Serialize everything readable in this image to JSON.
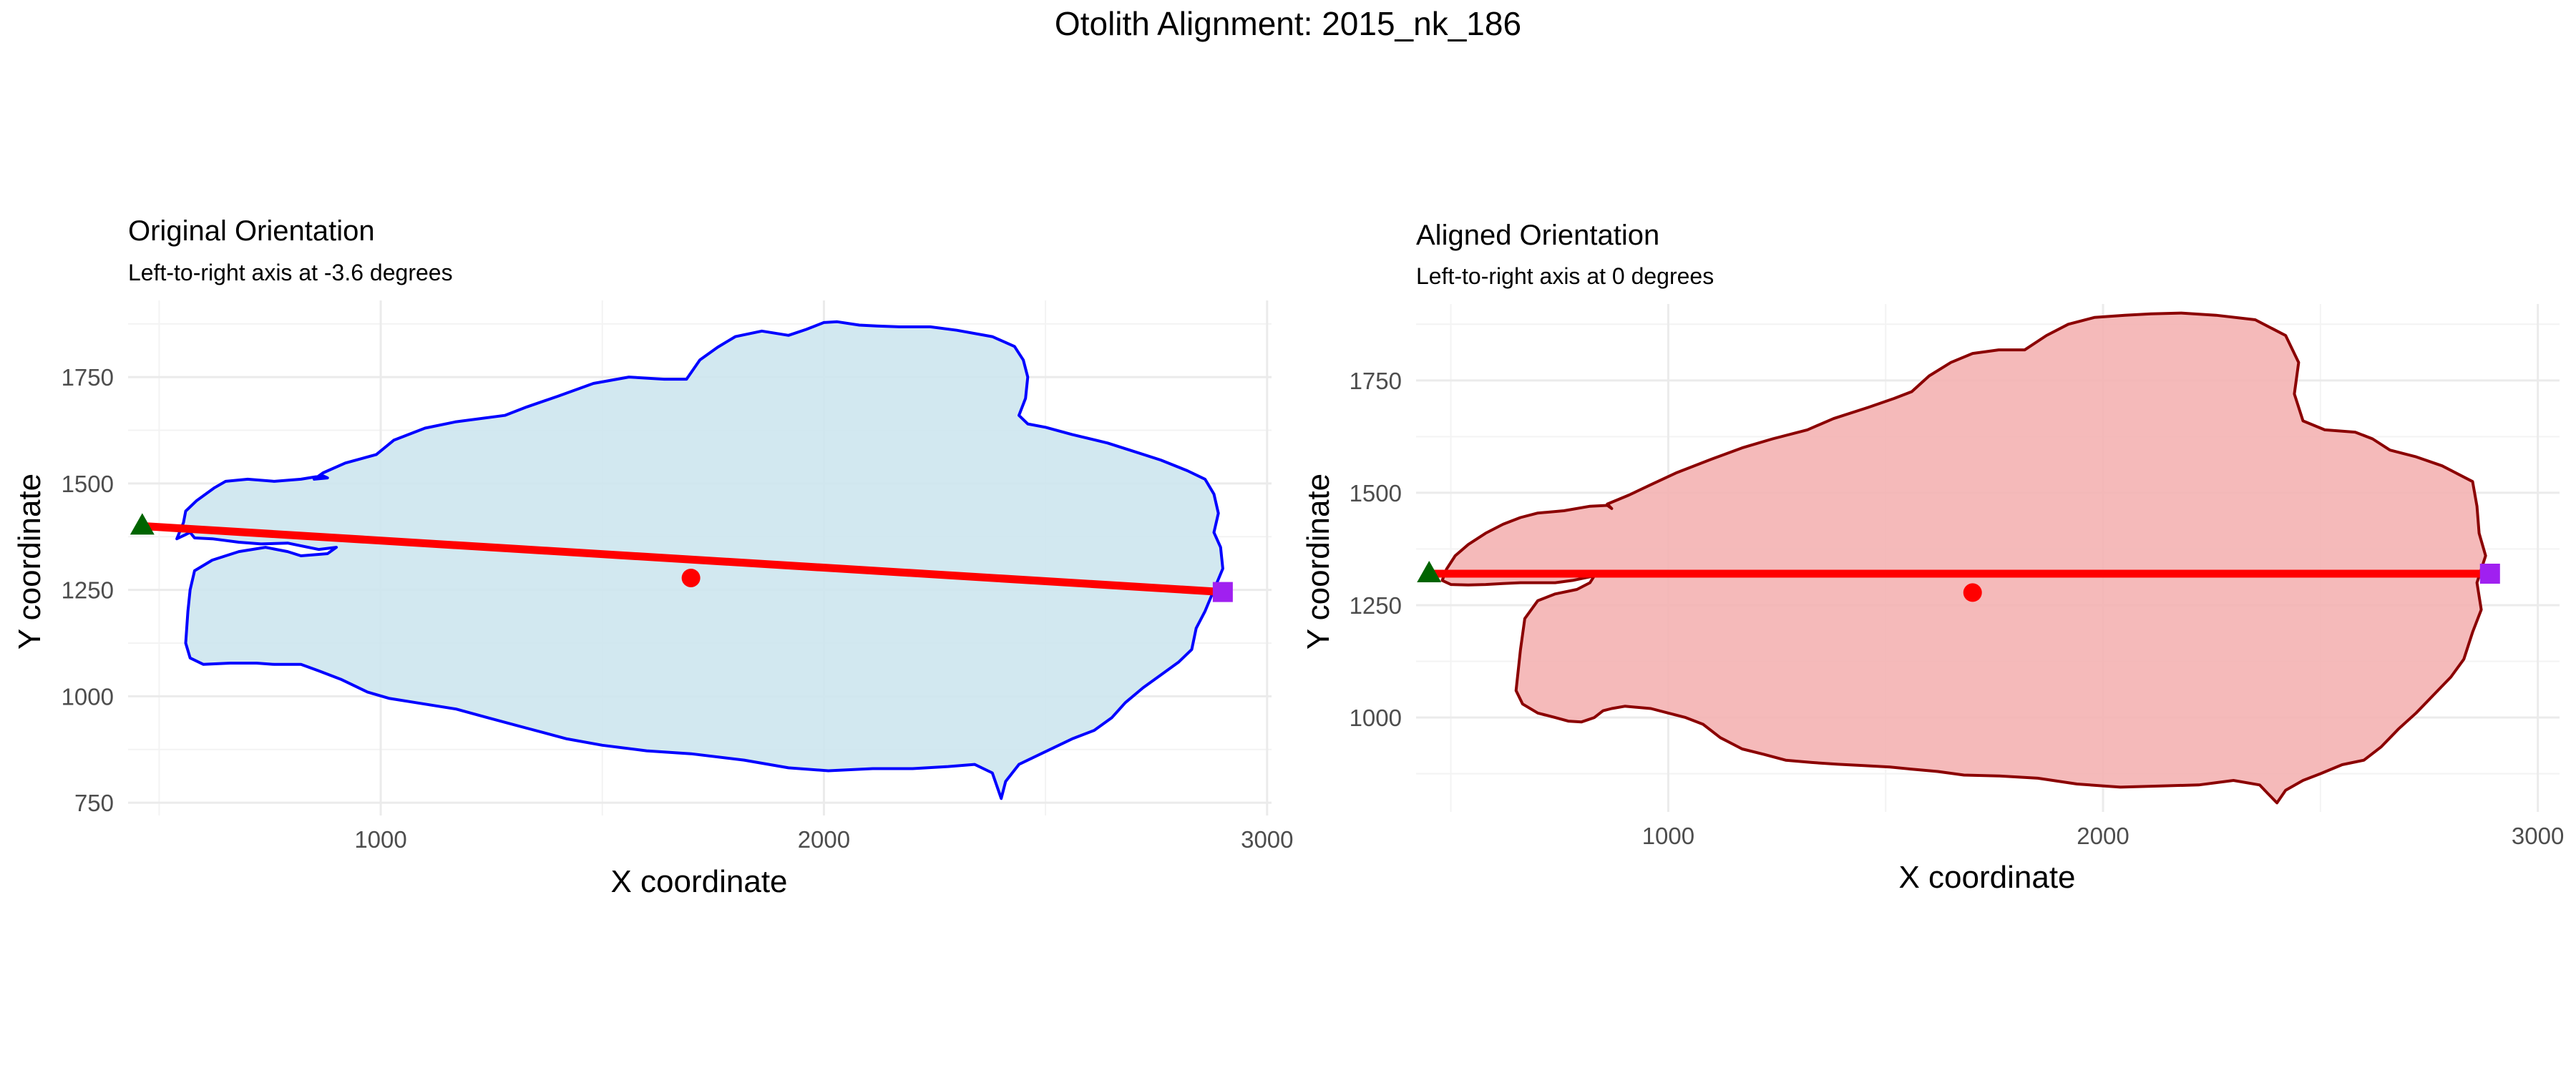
{
  "figure": {
    "title": "Otolith Alignment: 2015_nk_186"
  },
  "chart_data": [
    {
      "type": "scatter",
      "id": "original",
      "title": "Original Orientation",
      "subtitle": "Left-to-right axis at -3.6 degrees",
      "xlabel": "X coordinate",
      "ylabel": "Y coordinate",
      "xlim": [
        430,
        3010
      ],
      "ylim": [
        720,
        1930
      ],
      "xticks": [
        1000,
        2000,
        3000
      ],
      "xtick_labels": [
        "1000",
        "2000",
        "3000"
      ],
      "yticks": [
        750,
        1000,
        1250,
        1500,
        1750
      ],
      "ytick_labels": [
        "750",
        "1000",
        "1250",
        "1500",
        "1750"
      ],
      "grid": true,
      "colors": {
        "fill": "#cde6ee",
        "outline": "#0000ff",
        "axis_line": "#ff0000",
        "centroid": "#ff0000",
        "start_marker": "#006400",
        "end_marker": "#a020f0"
      },
      "outline": [
        [
          540,
          1370
        ],
        [
          555,
          1408
        ],
        [
          560,
          1435
        ],
        [
          585,
          1460
        ],
        [
          625,
          1490
        ],
        [
          650,
          1505
        ],
        [
          700,
          1510
        ],
        [
          760,
          1505
        ],
        [
          820,
          1510
        ],
        [
          850,
          1515
        ],
        [
          870,
          1518
        ],
        [
          880,
          1513
        ],
        [
          850,
          1510
        ],
        [
          870,
          1525
        ],
        [
          920,
          1548
        ],
        [
          990,
          1568
        ],
        [
          1030,
          1602
        ],
        [
          1100,
          1630
        ],
        [
          1170,
          1645
        ],
        [
          1280,
          1660
        ],
        [
          1330,
          1680
        ],
        [
          1400,
          1705
        ],
        [
          1480,
          1735
        ],
        [
          1560,
          1750
        ],
        [
          1640,
          1745
        ],
        [
          1690,
          1745
        ],
        [
          1720,
          1790
        ],
        [
          1760,
          1820
        ],
        [
          1800,
          1845
        ],
        [
          1860,
          1858
        ],
        [
          1920,
          1848
        ],
        [
          1960,
          1862
        ],
        [
          2000,
          1878
        ],
        [
          2030,
          1880
        ],
        [
          2080,
          1872
        ],
        [
          2120,
          1870
        ],
        [
          2170,
          1868
        ],
        [
          2240,
          1868
        ],
        [
          2300,
          1860
        ],
        [
          2380,
          1845
        ],
        [
          2430,
          1822
        ],
        [
          2450,
          1790
        ],
        [
          2460,
          1750
        ],
        [
          2455,
          1700
        ],
        [
          2440,
          1660
        ],
        [
          2460,
          1640
        ],
        [
          2500,
          1632
        ],
        [
          2560,
          1615
        ],
        [
          2640,
          1595
        ],
        [
          2700,
          1575
        ],
        [
          2760,
          1555
        ],
        [
          2820,
          1530
        ],
        [
          2860,
          1510
        ],
        [
          2880,
          1475
        ],
        [
          2890,
          1430
        ],
        [
          2880,
          1385
        ],
        [
          2895,
          1350
        ],
        [
          2900,
          1300
        ],
        [
          2880,
          1250
        ],
        [
          2860,
          1200
        ],
        [
          2840,
          1160
        ],
        [
          2830,
          1110
        ],
        [
          2800,
          1080
        ],
        [
          2760,
          1050
        ],
        [
          2720,
          1020
        ],
        [
          2680,
          985
        ],
        [
          2650,
          950
        ],
        [
          2610,
          920
        ],
        [
          2560,
          900
        ],
        [
          2520,
          880
        ],
        [
          2480,
          860
        ],
        [
          2440,
          840
        ],
        [
          2410,
          800
        ],
        [
          2400,
          760
        ],
        [
          2390,
          790
        ],
        [
          2380,
          820
        ],
        [
          2340,
          840
        ],
        [
          2280,
          835
        ],
        [
          2200,
          830
        ],
        [
          2110,
          830
        ],
        [
          2010,
          825
        ],
        [
          1920,
          832
        ],
        [
          1820,
          850
        ],
        [
          1700,
          865
        ],
        [
          1600,
          872
        ],
        [
          1500,
          885
        ],
        [
          1420,
          900
        ],
        [
          1330,
          925
        ],
        [
          1240,
          950
        ],
        [
          1170,
          970
        ],
        [
          1080,
          985
        ],
        [
          1020,
          995
        ],
        [
          970,
          1010
        ],
        [
          910,
          1040
        ],
        [
          860,
          1060
        ],
        [
          820,
          1075
        ],
        [
          760,
          1075
        ],
        [
          720,
          1078
        ],
        [
          660,
          1078
        ],
        [
          600,
          1075
        ],
        [
          570,
          1090
        ],
        [
          560,
          1125
        ],
        [
          565,
          1200
        ],
        [
          570,
          1250
        ],
        [
          580,
          1295
        ],
        [
          620,
          1320
        ],
        [
          680,
          1340
        ],
        [
          740,
          1350
        ],
        [
          790,
          1340
        ],
        [
          820,
          1330
        ],
        [
          880,
          1335
        ],
        [
          900,
          1350
        ],
        [
          860,
          1345
        ],
        [
          790,
          1360
        ],
        [
          730,
          1358
        ],
        [
          680,
          1362
        ],
        [
          620,
          1370
        ],
        [
          580,
          1372
        ],
        [
          570,
          1385
        ],
        [
          540,
          1370
        ]
      ],
      "axis_line": {
        "start": [
          462,
          1400
        ],
        "end": [
          2900,
          1245
        ]
      },
      "centroid": [
        1700,
        1278
      ],
      "start_point": [
        462,
        1400
      ],
      "end_point": [
        2900,
        1245
      ]
    },
    {
      "type": "scatter",
      "id": "aligned",
      "title": "Aligned Orientation",
      "subtitle": "Left-to-right axis at 0 degrees",
      "xlabel": "X coordinate",
      "ylabel": "Y coordinate",
      "xlim": [
        420,
        3050
      ],
      "ylim": [
        790,
        1920
      ],
      "xticks": [
        1000,
        2000,
        3000
      ],
      "xtick_labels": [
        "1000",
        "2000",
        "3000"
      ],
      "yticks": [
        1000,
        1250,
        1500,
        1750
      ],
      "ytick_labels": [
        "1000",
        "1250",
        "1500",
        "1750"
      ],
      "grid": true,
      "colors": {
        "fill": "#f4b3b3",
        "outline": "#8b0000",
        "axis_line": "#ff0000",
        "centroid": "#ff0000",
        "start_marker": "#006400",
        "end_marker": "#a020f0"
      },
      "outline": [
        [
          480,
          1305
        ],
        [
          490,
          1330
        ],
        [
          510,
          1360
        ],
        [
          540,
          1385
        ],
        [
          580,
          1410
        ],
        [
          620,
          1430
        ],
        [
          660,
          1445
        ],
        [
          700,
          1455
        ],
        [
          760,
          1460
        ],
        [
          820,
          1470
        ],
        [
          860,
          1472
        ],
        [
          870,
          1465
        ],
        [
          860,
          1475
        ],
        [
          910,
          1495
        ],
        [
          960,
          1518
        ],
        [
          1020,
          1545
        ],
        [
          1100,
          1575
        ],
        [
          1170,
          1600
        ],
        [
          1240,
          1620
        ],
        [
          1320,
          1640
        ],
        [
          1380,
          1665
        ],
        [
          1460,
          1690
        ],
        [
          1520,
          1710
        ],
        [
          1560,
          1725
        ],
        [
          1600,
          1760
        ],
        [
          1650,
          1790
        ],
        [
          1700,
          1810
        ],
        [
          1760,
          1818
        ],
        [
          1820,
          1818
        ],
        [
          1870,
          1850
        ],
        [
          1920,
          1875
        ],
        [
          1980,
          1890
        ],
        [
          2050,
          1895
        ],
        [
          2110,
          1898
        ],
        [
          2180,
          1900
        ],
        [
          2260,
          1895
        ],
        [
          2350,
          1885
        ],
        [
          2420,
          1850
        ],
        [
          2450,
          1790
        ],
        [
          2440,
          1720
        ],
        [
          2460,
          1660
        ],
        [
          2510,
          1640
        ],
        [
          2580,
          1635
        ],
        [
          2620,
          1620
        ],
        [
          2660,
          1595
        ],
        [
          2720,
          1580
        ],
        [
          2780,
          1560
        ],
        [
          2820,
          1540
        ],
        [
          2850,
          1525
        ],
        [
          2860,
          1470
        ],
        [
          2865,
          1410
        ],
        [
          2880,
          1360
        ],
        [
          2860,
          1300
        ],
        [
          2870,
          1240
        ],
        [
          2850,
          1190
        ],
        [
          2830,
          1130
        ],
        [
          2800,
          1090
        ],
        [
          2760,
          1050
        ],
        [
          2720,
          1010
        ],
        [
          2680,
          975
        ],
        [
          2640,
          935
        ],
        [
          2600,
          905
        ],
        [
          2550,
          895
        ],
        [
          2500,
          875
        ],
        [
          2460,
          860
        ],
        [
          2420,
          838
        ],
        [
          2400,
          810
        ],
        [
          2380,
          830
        ],
        [
          2360,
          850
        ],
        [
          2300,
          860
        ],
        [
          2220,
          850
        ],
        [
          2140,
          848
        ],
        [
          2040,
          845
        ],
        [
          1940,
          852
        ],
        [
          1850,
          865
        ],
        [
          1760,
          870
        ],
        [
          1680,
          872
        ],
        [
          1620,
          880
        ],
        [
          1560,
          885
        ],
        [
          1510,
          890
        ],
        [
          1450,
          893
        ],
        [
          1390,
          896
        ],
        [
          1330,
          900
        ],
        [
          1270,
          905
        ],
        [
          1220,
          918
        ],
        [
          1170,
          930
        ],
        [
          1120,
          955
        ],
        [
          1080,
          985
        ],
        [
          1040,
          1000
        ],
        [
          1000,
          1010
        ],
        [
          960,
          1020
        ],
        [
          900,
          1025
        ],
        [
          870,
          1020
        ],
        [
          850,
          1015
        ],
        [
          830,
          1000
        ],
        [
          800,
          990
        ],
        [
          770,
          992
        ],
        [
          740,
          1000
        ],
        [
          700,
          1010
        ],
        [
          665,
          1030
        ],
        [
          650,
          1060
        ],
        [
          660,
          1150
        ],
        [
          670,
          1220
        ],
        [
          700,
          1260
        ],
        [
          740,
          1275
        ],
        [
          790,
          1285
        ],
        [
          820,
          1300
        ],
        [
          830,
          1315
        ],
        [
          780,
          1305
        ],
        [
          740,
          1300
        ],
        [
          700,
          1300
        ],
        [
          660,
          1300
        ],
        [
          620,
          1298
        ],
        [
          580,
          1296
        ],
        [
          540,
          1295
        ],
        [
          500,
          1296
        ],
        [
          480,
          1305
        ]
      ],
      "axis_line": {
        "start": [
          450,
          1320
        ],
        "end": [
          2890,
          1320
        ]
      },
      "centroid": [
        1700,
        1278
      ],
      "start_point": [
        450,
        1320
      ],
      "end_point": [
        2890,
        1320
      ]
    }
  ]
}
